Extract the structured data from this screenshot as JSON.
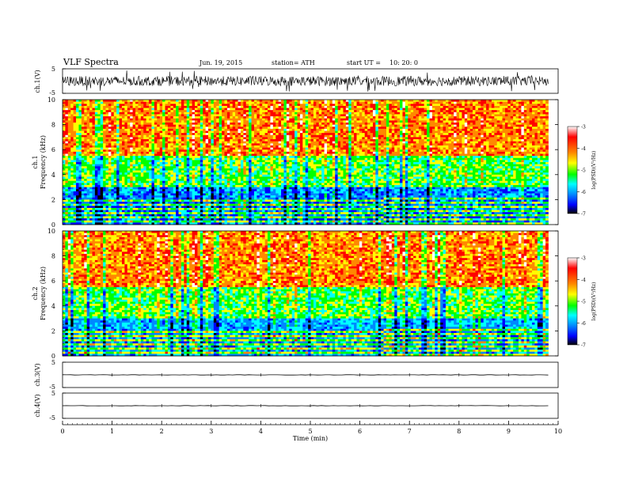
{
  "header": {
    "title": "VLF  Spectra",
    "date": "Jun. 19, 2015",
    "station": "station= ATH",
    "start_label": "start  UT =",
    "start_time": "10: 20: 0"
  },
  "xaxis": {
    "label": "Time  (min)",
    "ticks": [
      "0",
      "1",
      "2",
      "3",
      "4",
      "5",
      "6",
      "7",
      "8",
      "9",
      "10"
    ],
    "range": [
      0,
      10
    ],
    "data_end": 9.8
  },
  "panels": {
    "ch1v": {
      "ylabel": "ch.1(V)",
      "ticks": [
        "5",
        "-5"
      ]
    },
    "ch3v": {
      "ylabel": "ch.3(V)",
      "ticks": [
        "5",
        "-5"
      ]
    },
    "ch4v": {
      "ylabel": "ch.4(V)",
      "ticks": [
        "5",
        "-5"
      ]
    },
    "spec1": {
      "ylabel_top": "ch.1",
      "ylabel": "Frequency  (kHz)",
      "ticks": [
        "10",
        "8",
        "6",
        "4",
        "2",
        "0"
      ]
    },
    "spec2": {
      "ylabel_top": "ch.2",
      "ylabel": "Frequency  (kHz)",
      "ticks": [
        "10",
        "8",
        "6",
        "4",
        "2",
        "0"
      ]
    }
  },
  "colorbar": {
    "label": "log(PSD)(V²/Hz)",
    "ticks": [
      "-3",
      "-4",
      "-5",
      "-6",
      "-7"
    ],
    "colors": [
      "#ffffff",
      "#ff0000",
      "#ff8800",
      "#ffff00",
      "#00ff00",
      "#00ffff",
      "#0088ff",
      "#0000ff",
      "#000000"
    ]
  },
  "chart_data": [
    {
      "type": "line",
      "title": "VLF  Spectra",
      "channel": "ch.1(V)",
      "xlabel": "Time  (min)",
      "xlim": [
        0,
        10
      ],
      "ylim": [
        -5,
        5
      ],
      "note_values": {
        "typical_baseline": 0,
        "typical_envelope": [
          -2,
          2
        ]
      }
    },
    {
      "type": "heatmap",
      "channel": "ch.1",
      "ylabel": "Frequency  (kHz)",
      "xlim": [
        0,
        10
      ],
      "ylim": [
        0,
        10
      ],
      "colorbar_label": "log(PSD)(V²/Hz)",
      "colorbar_range": [
        -7,
        -3
      ],
      "dominant_bands": [
        {
          "freq_range_khz": [
            0,
            2.2
          ],
          "logpsd": -5.5,
          "pattern": "horizontal stripes"
        },
        {
          "freq_range_khz": [
            2.2,
            3
          ],
          "logpsd": -6.0
        },
        {
          "freq_range_khz": [
            3,
            5.5
          ],
          "logpsd": -5.0
        },
        {
          "freq_range_khz": [
            5.5,
            10
          ],
          "logpsd": -4.0
        }
      ],
      "band_shift_time_min": 6.45
    },
    {
      "type": "heatmap",
      "channel": "ch.2",
      "ylabel": "Frequency  (kHz)",
      "xlim": [
        0,
        10
      ],
      "ylim": [
        0,
        10
      ],
      "colorbar_label": "log(PSD)(V²/Hz)",
      "colorbar_range": [
        -7,
        -3
      ],
      "dominant_bands": [
        {
          "freq_range_khz": [
            0,
            2.2
          ],
          "logpsd": -5.3,
          "pattern": "horizontal stripes"
        },
        {
          "freq_range_khz": [
            2.2,
            3
          ],
          "logpsd": -5.8
        },
        {
          "freq_range_khz": [
            3,
            5.5
          ],
          "logpsd": -5.0
        },
        {
          "freq_range_khz": [
            5.5,
            10
          ],
          "logpsd": -4.0
        }
      ],
      "band_shift_time_min": 6.45
    },
    {
      "type": "line",
      "channel": "ch.3(V)",
      "xlim": [
        0,
        10
      ],
      "ylim": [
        -5,
        5
      ],
      "baseline": 0
    },
    {
      "type": "line",
      "channel": "ch.4(V)",
      "xlim": [
        0,
        10
      ],
      "ylim": [
        -5,
        5
      ],
      "baseline": 0
    }
  ]
}
